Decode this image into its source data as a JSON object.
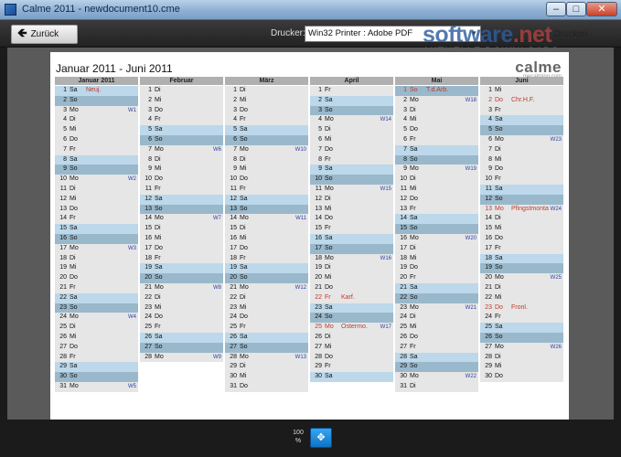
{
  "window": {
    "title": "Calme 2011 - newdocument10.cme",
    "minimize_icon": "–",
    "maximize_icon": "□",
    "close_icon": "✕"
  },
  "toolbar": {
    "back_label": "Zurück",
    "back_icon": "🡸",
    "printer_label": "Drucker:",
    "printer_value": "Win32 Printer : Adobe PDF",
    "print_label": "Drucken"
  },
  "watermark": {
    "main": "software",
    "net": ".net",
    "sub": "AKTUELLE DOWNLOADS"
  },
  "page": {
    "title": "Januar 2011 - Juni 2011",
    "brand": "calme",
    "brand_sub": "mecalming.com"
  },
  "calendar": {
    "months": [
      {
        "name": "Januar 2011",
        "days": [
          {
            "d": "1",
            "w": "Sa",
            "t": "sa",
            "note": "Neuj."
          },
          {
            "d": "2",
            "w": "So",
            "t": "so"
          },
          {
            "d": "3",
            "w": "Mo",
            "t": "n",
            "wk": "W1"
          },
          {
            "d": "4",
            "w": "Di",
            "t": "n"
          },
          {
            "d": "5",
            "w": "Mi",
            "t": "n"
          },
          {
            "d": "6",
            "w": "Do",
            "t": "n"
          },
          {
            "d": "7",
            "w": "Fr",
            "t": "n"
          },
          {
            "d": "8",
            "w": "Sa",
            "t": "sa"
          },
          {
            "d": "9",
            "w": "So",
            "t": "so"
          },
          {
            "d": "10",
            "w": "Mo",
            "t": "n",
            "wk": "W2"
          },
          {
            "d": "11",
            "w": "Di",
            "t": "n"
          },
          {
            "d": "12",
            "w": "Mi",
            "t": "n"
          },
          {
            "d": "13",
            "w": "Do",
            "t": "n"
          },
          {
            "d": "14",
            "w": "Fr",
            "t": "n"
          },
          {
            "d": "15",
            "w": "Sa",
            "t": "sa"
          },
          {
            "d": "16",
            "w": "So",
            "t": "so"
          },
          {
            "d": "17",
            "w": "Mo",
            "t": "n",
            "wk": "W3"
          },
          {
            "d": "18",
            "w": "Di",
            "t": "n"
          },
          {
            "d": "19",
            "w": "Mi",
            "t": "n"
          },
          {
            "d": "20",
            "w": "Do",
            "t": "n"
          },
          {
            "d": "21",
            "w": "Fr",
            "t": "n"
          },
          {
            "d": "22",
            "w": "Sa",
            "t": "sa"
          },
          {
            "d": "23",
            "w": "So",
            "t": "so"
          },
          {
            "d": "24",
            "w": "Mo",
            "t": "n",
            "wk": "W4"
          },
          {
            "d": "25",
            "w": "Di",
            "t": "n"
          },
          {
            "d": "26",
            "w": "Mi",
            "t": "n"
          },
          {
            "d": "27",
            "w": "Do",
            "t": "n"
          },
          {
            "d": "28",
            "w": "Fr",
            "t": "n"
          },
          {
            "d": "29",
            "w": "Sa",
            "t": "sa"
          },
          {
            "d": "30",
            "w": "So",
            "t": "so"
          },
          {
            "d": "31",
            "w": "Mo",
            "t": "n",
            "wk": "W5"
          }
        ]
      },
      {
        "name": "Februar",
        "days": [
          {
            "d": "1",
            "w": "Di",
            "t": "n"
          },
          {
            "d": "2",
            "w": "Mi",
            "t": "n"
          },
          {
            "d": "3",
            "w": "Do",
            "t": "n"
          },
          {
            "d": "4",
            "w": "Fr",
            "t": "n"
          },
          {
            "d": "5",
            "w": "Sa",
            "t": "sa"
          },
          {
            "d": "6",
            "w": "So",
            "t": "so"
          },
          {
            "d": "7",
            "w": "Mo",
            "t": "n",
            "wk": "W6"
          },
          {
            "d": "8",
            "w": "Di",
            "t": "n"
          },
          {
            "d": "9",
            "w": "Mi",
            "t": "n"
          },
          {
            "d": "10",
            "w": "Do",
            "t": "n"
          },
          {
            "d": "11",
            "w": "Fr",
            "t": "n"
          },
          {
            "d": "12",
            "w": "Sa",
            "t": "sa"
          },
          {
            "d": "13",
            "w": "So",
            "t": "so"
          },
          {
            "d": "14",
            "w": "Mo",
            "t": "n",
            "wk": "W7"
          },
          {
            "d": "15",
            "w": "Di",
            "t": "n"
          },
          {
            "d": "16",
            "w": "Mi",
            "t": "n"
          },
          {
            "d": "17",
            "w": "Do",
            "t": "n"
          },
          {
            "d": "18",
            "w": "Fr",
            "t": "n"
          },
          {
            "d": "19",
            "w": "Sa",
            "t": "sa"
          },
          {
            "d": "20",
            "w": "So",
            "t": "so"
          },
          {
            "d": "21",
            "w": "Mo",
            "t": "n",
            "wk": "W8"
          },
          {
            "d": "22",
            "w": "Di",
            "t": "n"
          },
          {
            "d": "23",
            "w": "Mi",
            "t": "n"
          },
          {
            "d": "24",
            "w": "Do",
            "t": "n"
          },
          {
            "d": "25",
            "w": "Fr",
            "t": "n"
          },
          {
            "d": "26",
            "w": "Sa",
            "t": "sa"
          },
          {
            "d": "27",
            "w": "So",
            "t": "so"
          },
          {
            "d": "28",
            "w": "Mo",
            "t": "n",
            "wk": "W9"
          }
        ]
      },
      {
        "name": "März",
        "days": [
          {
            "d": "1",
            "w": "Di",
            "t": "n"
          },
          {
            "d": "2",
            "w": "Mi",
            "t": "n"
          },
          {
            "d": "3",
            "w": "Do",
            "t": "n"
          },
          {
            "d": "4",
            "w": "Fr",
            "t": "n"
          },
          {
            "d": "5",
            "w": "Sa",
            "t": "sa"
          },
          {
            "d": "6",
            "w": "So",
            "t": "so"
          },
          {
            "d": "7",
            "w": "Mo",
            "t": "n",
            "wk": "W10"
          },
          {
            "d": "8",
            "w": "Di",
            "t": "n"
          },
          {
            "d": "9",
            "w": "Mi",
            "t": "n"
          },
          {
            "d": "10",
            "w": "Do",
            "t": "n"
          },
          {
            "d": "11",
            "w": "Fr",
            "t": "n"
          },
          {
            "d": "12",
            "w": "Sa",
            "t": "sa"
          },
          {
            "d": "13",
            "w": "So",
            "t": "so"
          },
          {
            "d": "14",
            "w": "Mo",
            "t": "n",
            "wk": "W11"
          },
          {
            "d": "15",
            "w": "Di",
            "t": "n"
          },
          {
            "d": "16",
            "w": "Mi",
            "t": "n"
          },
          {
            "d": "17",
            "w": "Do",
            "t": "n"
          },
          {
            "d": "18",
            "w": "Fr",
            "t": "n"
          },
          {
            "d": "19",
            "w": "Sa",
            "t": "sa"
          },
          {
            "d": "20",
            "w": "So",
            "t": "so"
          },
          {
            "d": "21",
            "w": "Mo",
            "t": "n",
            "wk": "W12"
          },
          {
            "d": "22",
            "w": "Di",
            "t": "n"
          },
          {
            "d": "23",
            "w": "Mi",
            "t": "n"
          },
          {
            "d": "24",
            "w": "Do",
            "t": "n"
          },
          {
            "d": "25",
            "w": "Fr",
            "t": "n"
          },
          {
            "d": "26",
            "w": "Sa",
            "t": "sa"
          },
          {
            "d": "27",
            "w": "So",
            "t": "so"
          },
          {
            "d": "28",
            "w": "Mo",
            "t": "n",
            "wk": "W13"
          },
          {
            "d": "29",
            "w": "Di",
            "t": "n"
          },
          {
            "d": "30",
            "w": "Mi",
            "t": "n"
          },
          {
            "d": "31",
            "w": "Do",
            "t": "n"
          }
        ]
      },
      {
        "name": "April",
        "days": [
          {
            "d": "1",
            "w": "Fr",
            "t": "n"
          },
          {
            "d": "2",
            "w": "Sa",
            "t": "sa"
          },
          {
            "d": "3",
            "w": "So",
            "t": "so"
          },
          {
            "d": "4",
            "w": "Mo",
            "t": "n",
            "wk": "W14"
          },
          {
            "d": "5",
            "w": "Di",
            "t": "n"
          },
          {
            "d": "6",
            "w": "Mi",
            "t": "n"
          },
          {
            "d": "7",
            "w": "Do",
            "t": "n"
          },
          {
            "d": "8",
            "w": "Fr",
            "t": "n"
          },
          {
            "d": "9",
            "w": "Sa",
            "t": "sa"
          },
          {
            "d": "10",
            "w": "So",
            "t": "so"
          },
          {
            "d": "11",
            "w": "Mo",
            "t": "n",
            "wk": "W15"
          },
          {
            "d": "12",
            "w": "Di",
            "t": "n"
          },
          {
            "d": "13",
            "w": "Mi",
            "t": "n"
          },
          {
            "d": "14",
            "w": "Do",
            "t": "n"
          },
          {
            "d": "15",
            "w": "Fr",
            "t": "n"
          },
          {
            "d": "16",
            "w": "Sa",
            "t": "sa"
          },
          {
            "d": "17",
            "w": "So",
            "t": "so"
          },
          {
            "d": "18",
            "w": "Mo",
            "t": "n",
            "wk": "W16"
          },
          {
            "d": "19",
            "w": "Di",
            "t": "n"
          },
          {
            "d": "20",
            "w": "Mi",
            "t": "n"
          },
          {
            "d": "21",
            "w": "Do",
            "t": "n"
          },
          {
            "d": "22",
            "w": "Fr",
            "t": "n",
            "hol": true,
            "note": "Karf."
          },
          {
            "d": "23",
            "w": "Sa",
            "t": "sa"
          },
          {
            "d": "24",
            "w": "So",
            "t": "so"
          },
          {
            "d": "25",
            "w": "Mo",
            "t": "n",
            "hol": true,
            "note": "Ostermo.",
            "wk": "W17"
          },
          {
            "d": "26",
            "w": "Di",
            "t": "n"
          },
          {
            "d": "27",
            "w": "Mi",
            "t": "n"
          },
          {
            "d": "28",
            "w": "Do",
            "t": "n"
          },
          {
            "d": "29",
            "w": "Fr",
            "t": "n"
          },
          {
            "d": "30",
            "w": "Sa",
            "t": "sa"
          }
        ]
      },
      {
        "name": "Mai",
        "days": [
          {
            "d": "1",
            "w": "So",
            "t": "so",
            "hol": true,
            "note": "T.d.Arb."
          },
          {
            "d": "2",
            "w": "Mo",
            "t": "n",
            "wk": "W18"
          },
          {
            "d": "3",
            "w": "Di",
            "t": "n"
          },
          {
            "d": "4",
            "w": "Mi",
            "t": "n"
          },
          {
            "d": "5",
            "w": "Do",
            "t": "n"
          },
          {
            "d": "6",
            "w": "Fr",
            "t": "n"
          },
          {
            "d": "7",
            "w": "Sa",
            "t": "sa"
          },
          {
            "d": "8",
            "w": "So",
            "t": "so"
          },
          {
            "d": "9",
            "w": "Mo",
            "t": "n",
            "wk": "W19"
          },
          {
            "d": "10",
            "w": "Di",
            "t": "n"
          },
          {
            "d": "11",
            "w": "Mi",
            "t": "n"
          },
          {
            "d": "12",
            "w": "Do",
            "t": "n"
          },
          {
            "d": "13",
            "w": "Fr",
            "t": "n"
          },
          {
            "d": "14",
            "w": "Sa",
            "t": "sa"
          },
          {
            "d": "15",
            "w": "So",
            "t": "so"
          },
          {
            "d": "16",
            "w": "Mo",
            "t": "n",
            "wk": "W20"
          },
          {
            "d": "17",
            "w": "Di",
            "t": "n"
          },
          {
            "d": "18",
            "w": "Mi",
            "t": "n"
          },
          {
            "d": "19",
            "w": "Do",
            "t": "n"
          },
          {
            "d": "20",
            "w": "Fr",
            "t": "n"
          },
          {
            "d": "21",
            "w": "Sa",
            "t": "sa"
          },
          {
            "d": "22",
            "w": "So",
            "t": "so"
          },
          {
            "d": "23",
            "w": "Mo",
            "t": "n",
            "wk": "W21"
          },
          {
            "d": "24",
            "w": "Di",
            "t": "n"
          },
          {
            "d": "25",
            "w": "Mi",
            "t": "n"
          },
          {
            "d": "26",
            "w": "Do",
            "t": "n"
          },
          {
            "d": "27",
            "w": "Fr",
            "t": "n"
          },
          {
            "d": "28",
            "w": "Sa",
            "t": "sa"
          },
          {
            "d": "29",
            "w": "So",
            "t": "so"
          },
          {
            "d": "30",
            "w": "Mo",
            "t": "n",
            "wk": "W22"
          },
          {
            "d": "31",
            "w": "Di",
            "t": "n"
          }
        ]
      },
      {
        "name": "Juni",
        "days": [
          {
            "d": "1",
            "w": "Mi",
            "t": "n"
          },
          {
            "d": "2",
            "w": "Do",
            "t": "n",
            "hol": true,
            "note": "Chr.H.F."
          },
          {
            "d": "3",
            "w": "Fr",
            "t": "n"
          },
          {
            "d": "4",
            "w": "Sa",
            "t": "sa"
          },
          {
            "d": "5",
            "w": "So",
            "t": "so"
          },
          {
            "d": "6",
            "w": "Mo",
            "t": "n",
            "wk": "W23"
          },
          {
            "d": "7",
            "w": "Di",
            "t": "n"
          },
          {
            "d": "8",
            "w": "Mi",
            "t": "n"
          },
          {
            "d": "9",
            "w": "Do",
            "t": "n"
          },
          {
            "d": "10",
            "w": "Fr",
            "t": "n"
          },
          {
            "d": "11",
            "w": "Sa",
            "t": "sa"
          },
          {
            "d": "12",
            "w": "So",
            "t": "so"
          },
          {
            "d": "13",
            "w": "Mo",
            "t": "n",
            "hol": true,
            "note": "Pfingstmonta",
            "wk": "W24"
          },
          {
            "d": "14",
            "w": "Di",
            "t": "n"
          },
          {
            "d": "15",
            "w": "Mi",
            "t": "n"
          },
          {
            "d": "16",
            "w": "Do",
            "t": "n"
          },
          {
            "d": "17",
            "w": "Fr",
            "t": "n"
          },
          {
            "d": "18",
            "w": "Sa",
            "t": "sa"
          },
          {
            "d": "19",
            "w": "So",
            "t": "so"
          },
          {
            "d": "20",
            "w": "Mo",
            "t": "n",
            "wk": "W25"
          },
          {
            "d": "21",
            "w": "Di",
            "t": "n"
          },
          {
            "d": "22",
            "w": "Mi",
            "t": "n"
          },
          {
            "d": "23",
            "w": "Do",
            "t": "n",
            "hol": true,
            "note": "Fronl."
          },
          {
            "d": "24",
            "w": "Fr",
            "t": "n"
          },
          {
            "d": "25",
            "w": "Sa",
            "t": "sa"
          },
          {
            "d": "26",
            "w": "So",
            "t": "so"
          },
          {
            "d": "27",
            "w": "Mo",
            "t": "n",
            "wk": "W26"
          },
          {
            "d": "28",
            "w": "Di",
            "t": "n"
          },
          {
            "d": "29",
            "w": "Mi",
            "t": "n"
          },
          {
            "d": "30",
            "w": "Do",
            "t": "n"
          }
        ]
      }
    ]
  },
  "bottombar": {
    "zoom_value": "100",
    "zoom_unit": "%",
    "fit_icon": "✥"
  }
}
